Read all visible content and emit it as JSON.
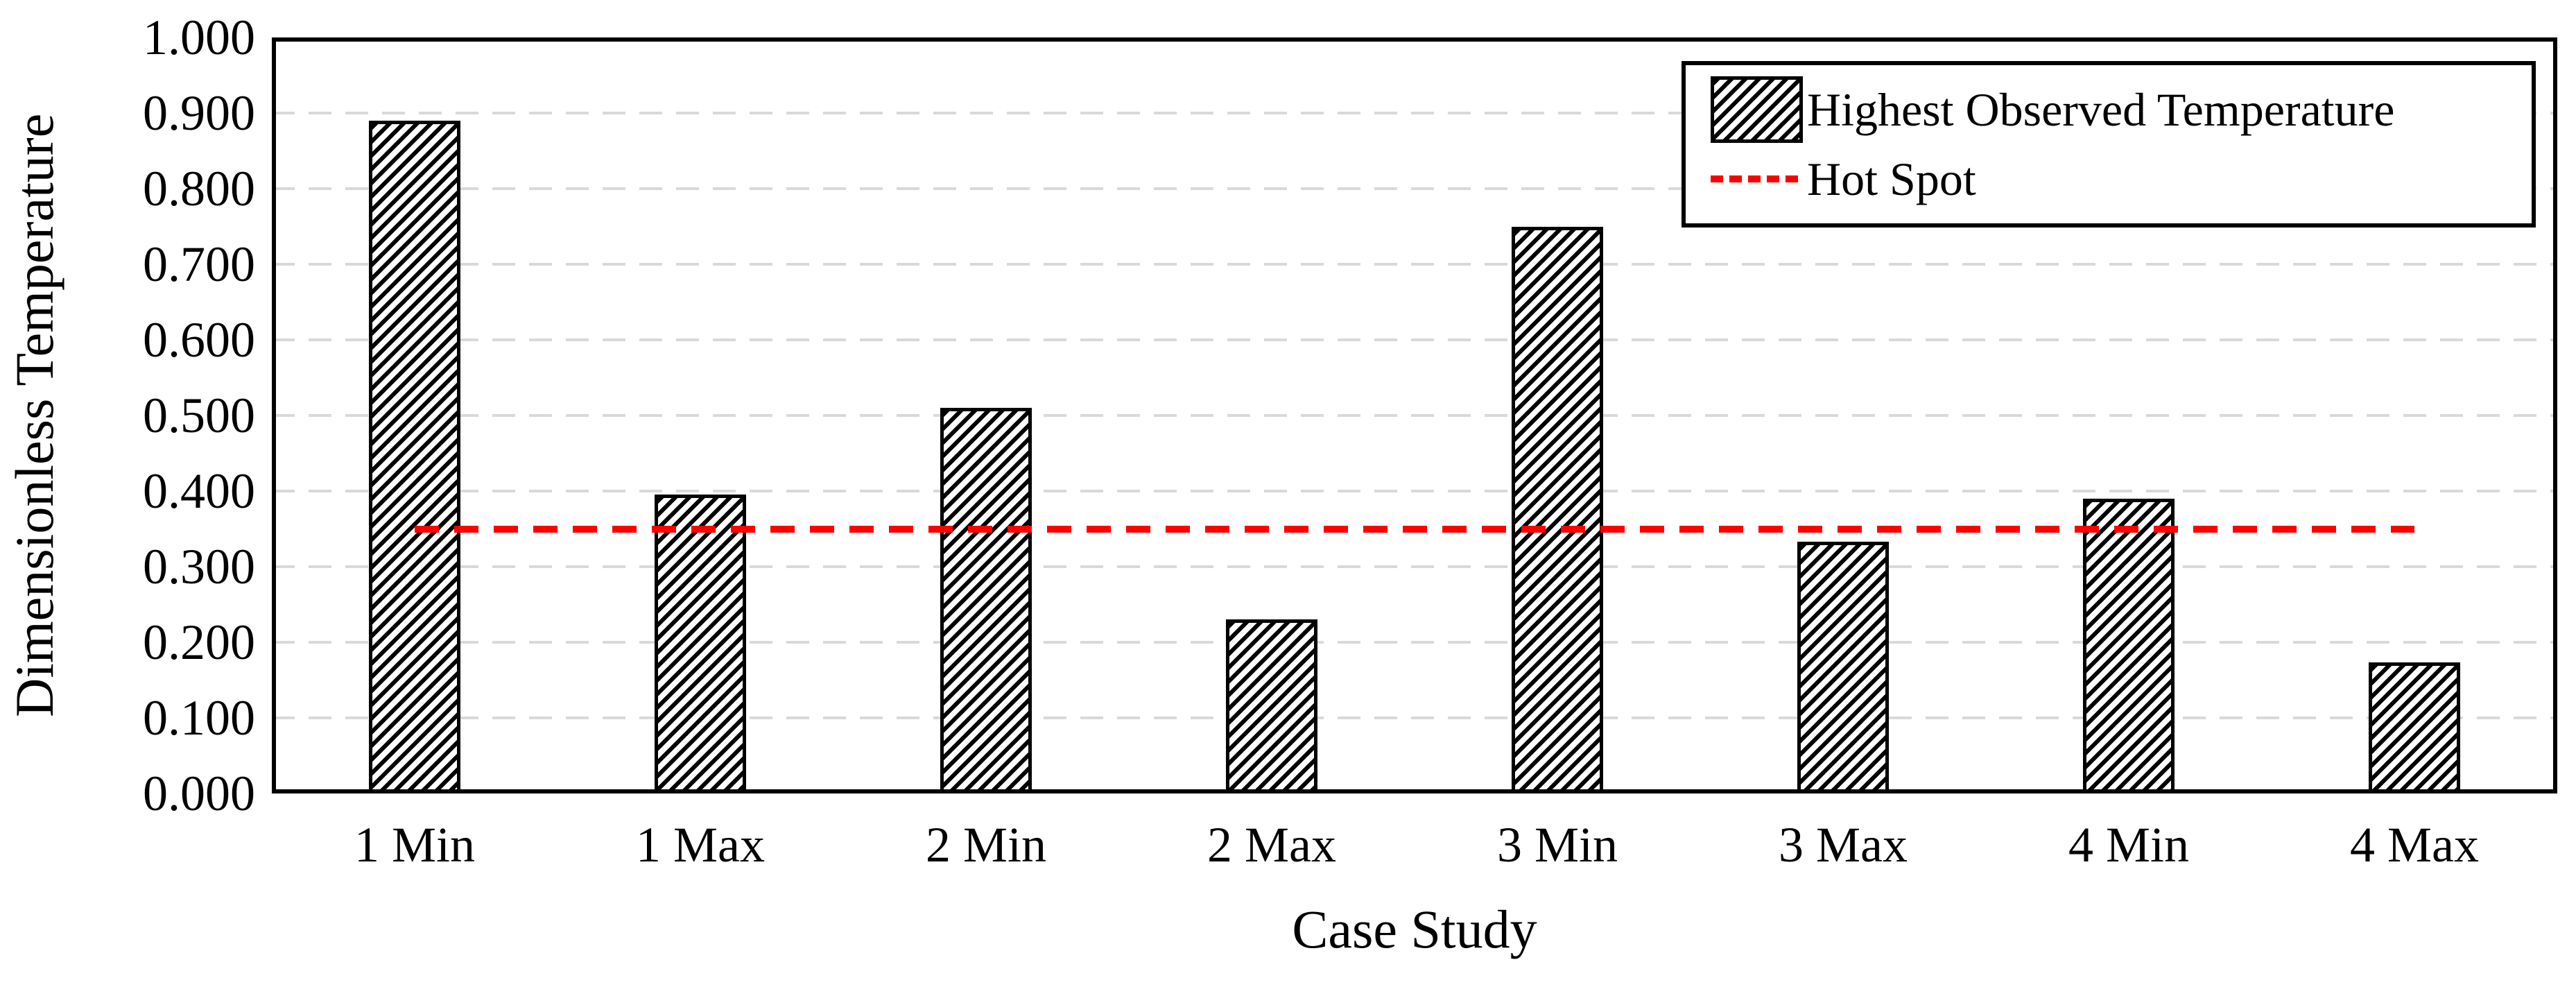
{
  "chart_data": {
    "type": "bar",
    "title": "",
    "xlabel": "Case Study",
    "ylabel": "Dimensionless Temperature",
    "categories": [
      "1 Min",
      "1 Max",
      "2 Min",
      "2 Max",
      "3 Min",
      "3 Max",
      "4 Min",
      "4 Max"
    ],
    "series": [
      {
        "name": "Highest Observed Temperature",
        "type": "bar",
        "values": [
          0.89,
          0.395,
          0.51,
          0.23,
          0.75,
          0.333,
          0.39,
          0.173
        ]
      },
      {
        "name": "Hot Spot",
        "type": "dashed-line",
        "value": 0.35
      }
    ],
    "ylim": [
      0,
      1
    ],
    "ytick_labels": [
      "0.000",
      "0.100",
      "0.200",
      "0.300",
      "0.400",
      "0.500",
      "0.600",
      "0.700",
      "0.800",
      "0.900",
      "1.000"
    ],
    "grid": "horizontal-dashed",
    "legend_position": "top-right-inside"
  },
  "legend": {
    "items": [
      {
        "label": "Highest Observed Temperature",
        "swatch": "hatched-bar"
      },
      {
        "label": "Hot Spot",
        "swatch": "red-dashed-line"
      }
    ]
  },
  "colors": {
    "background": "#FFFFFF",
    "text": "#000000",
    "frame": "#000000",
    "gridline": "#D9D9D9",
    "bar_fill": "#FFFFFF",
    "bar_hatch": "#000000",
    "hotspot_line": "#FF0000"
  }
}
